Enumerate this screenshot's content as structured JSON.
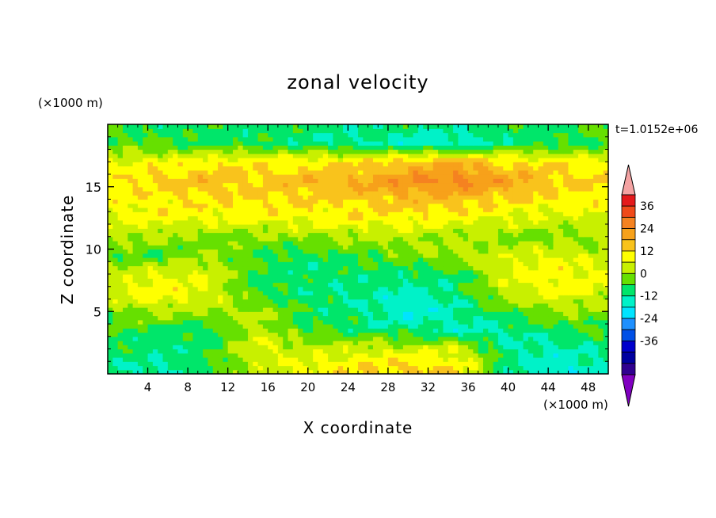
{
  "chart_data": {
    "type": "heatmap",
    "title": "zonal velocity",
    "xlabel": "X coordinate",
    "ylabel": "Z coordinate",
    "x_unit": "(×1000 m)",
    "y_unit": "(×1000 m)",
    "time_label": "t=1.0152e+06",
    "xlim": [
      0,
      50
    ],
    "ylim": [
      0,
      20
    ],
    "x_ticks": [
      4,
      8,
      12,
      16,
      20,
      24,
      28,
      32,
      36,
      40,
      44,
      48
    ],
    "y_ticks": [
      5,
      10,
      15
    ],
    "colorbar": {
      "levels": [
        -42,
        -36,
        -30,
        -24,
        -18,
        -12,
        -6,
        0,
        6,
        12,
        18,
        24,
        30,
        36,
        42
      ],
      "tick_labels": [
        "36",
        "24",
        "12",
        "0",
        "-12",
        "-24",
        "-36"
      ],
      "colors": [
        "#f4a3a3",
        "#e41a1c",
        "#f04a1a",
        "#f58220",
        "#f7a11a",
        "#f9c31c",
        "#ffff00",
        "#c8f000",
        "#66e000",
        "#00e66a",
        "#00f2c8",
        "#00e4ff",
        "#1e90ff",
        "#0050e6",
        "#0000cc",
        "#0000a0",
        "#300090",
        "#8000c0"
      ]
    },
    "field": {
      "description_rows_z_top_to_bottom": [
        20,
        18.5,
        17,
        15.5,
        14,
        12.5,
        11,
        9.5,
        8,
        6.5,
        5,
        3.5,
        2,
        0.5
      ],
      "x_cols": [
        0,
        5,
        10,
        15,
        20,
        25,
        30,
        35,
        40,
        45,
        50
      ],
      "values": [
        [
          -6,
          -8,
          -8,
          -8,
          -10,
          -10,
          -10,
          -10,
          -8,
          -8,
          -6
        ],
        [
          -4,
          -6,
          -8,
          -8,
          -10,
          -12,
          -14,
          -16,
          -10,
          -8,
          -6
        ],
        [
          6,
          8,
          10,
          10,
          10,
          12,
          14,
          18,
          12,
          10,
          8
        ],
        [
          10,
          14,
          16,
          14,
          16,
          18,
          24,
          26,
          20,
          14,
          12
        ],
        [
          8,
          10,
          12,
          12,
          12,
          14,
          16,
          16,
          12,
          10,
          10
        ],
        [
          6,
          8,
          8,
          8,
          8,
          10,
          10,
          8,
          6,
          4,
          4
        ],
        [
          2,
          0,
          -2,
          -2,
          0,
          2,
          2,
          0,
          -2,
          -2,
          0
        ],
        [
          -4,
          -6,
          0,
          -6,
          -8,
          -6,
          -2,
          2,
          4,
          6,
          2
        ],
        [
          2,
          6,
          6,
          -8,
          -10,
          -8,
          -10,
          -8,
          6,
          10,
          6
        ],
        [
          4,
          10,
          6,
          -6,
          -10,
          -12,
          -14,
          -10,
          4,
          8,
          4
        ],
        [
          -2,
          2,
          0,
          2,
          -8,
          -10,
          -18,
          -12,
          -6,
          0,
          -2
        ],
        [
          -6,
          -8,
          -10,
          4,
          -6,
          -8,
          -10,
          -14,
          -12,
          -8,
          -6
        ],
        [
          -8,
          -10,
          -8,
          6,
          2,
          4,
          4,
          6,
          -12,
          -14,
          -10
        ],
        [
          -10,
          -14,
          -6,
          2,
          8,
          12,
          14,
          10,
          -10,
          -18,
          -12
        ]
      ]
    }
  }
}
